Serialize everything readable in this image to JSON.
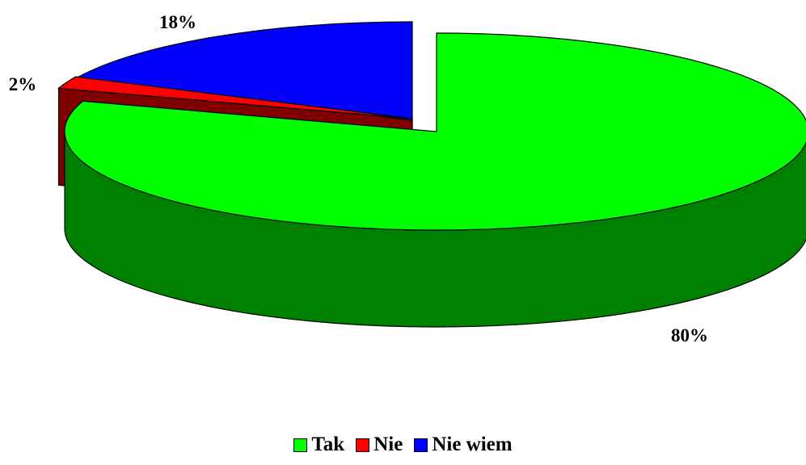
{
  "chart_data": {
    "type": "pie",
    "three_d": true,
    "categories": [
      "Tak",
      "Nie",
      "Nie wiem"
    ],
    "values": [
      80,
      2,
      18
    ],
    "data_labels": [
      "80%",
      "2%",
      "18%"
    ],
    "colors": [
      "#00FF00",
      "#FF0000",
      "#0000FF"
    ],
    "side_colors": [
      "#008000",
      "#800000",
      "#000080"
    ],
    "legend_position": "bottom"
  }
}
